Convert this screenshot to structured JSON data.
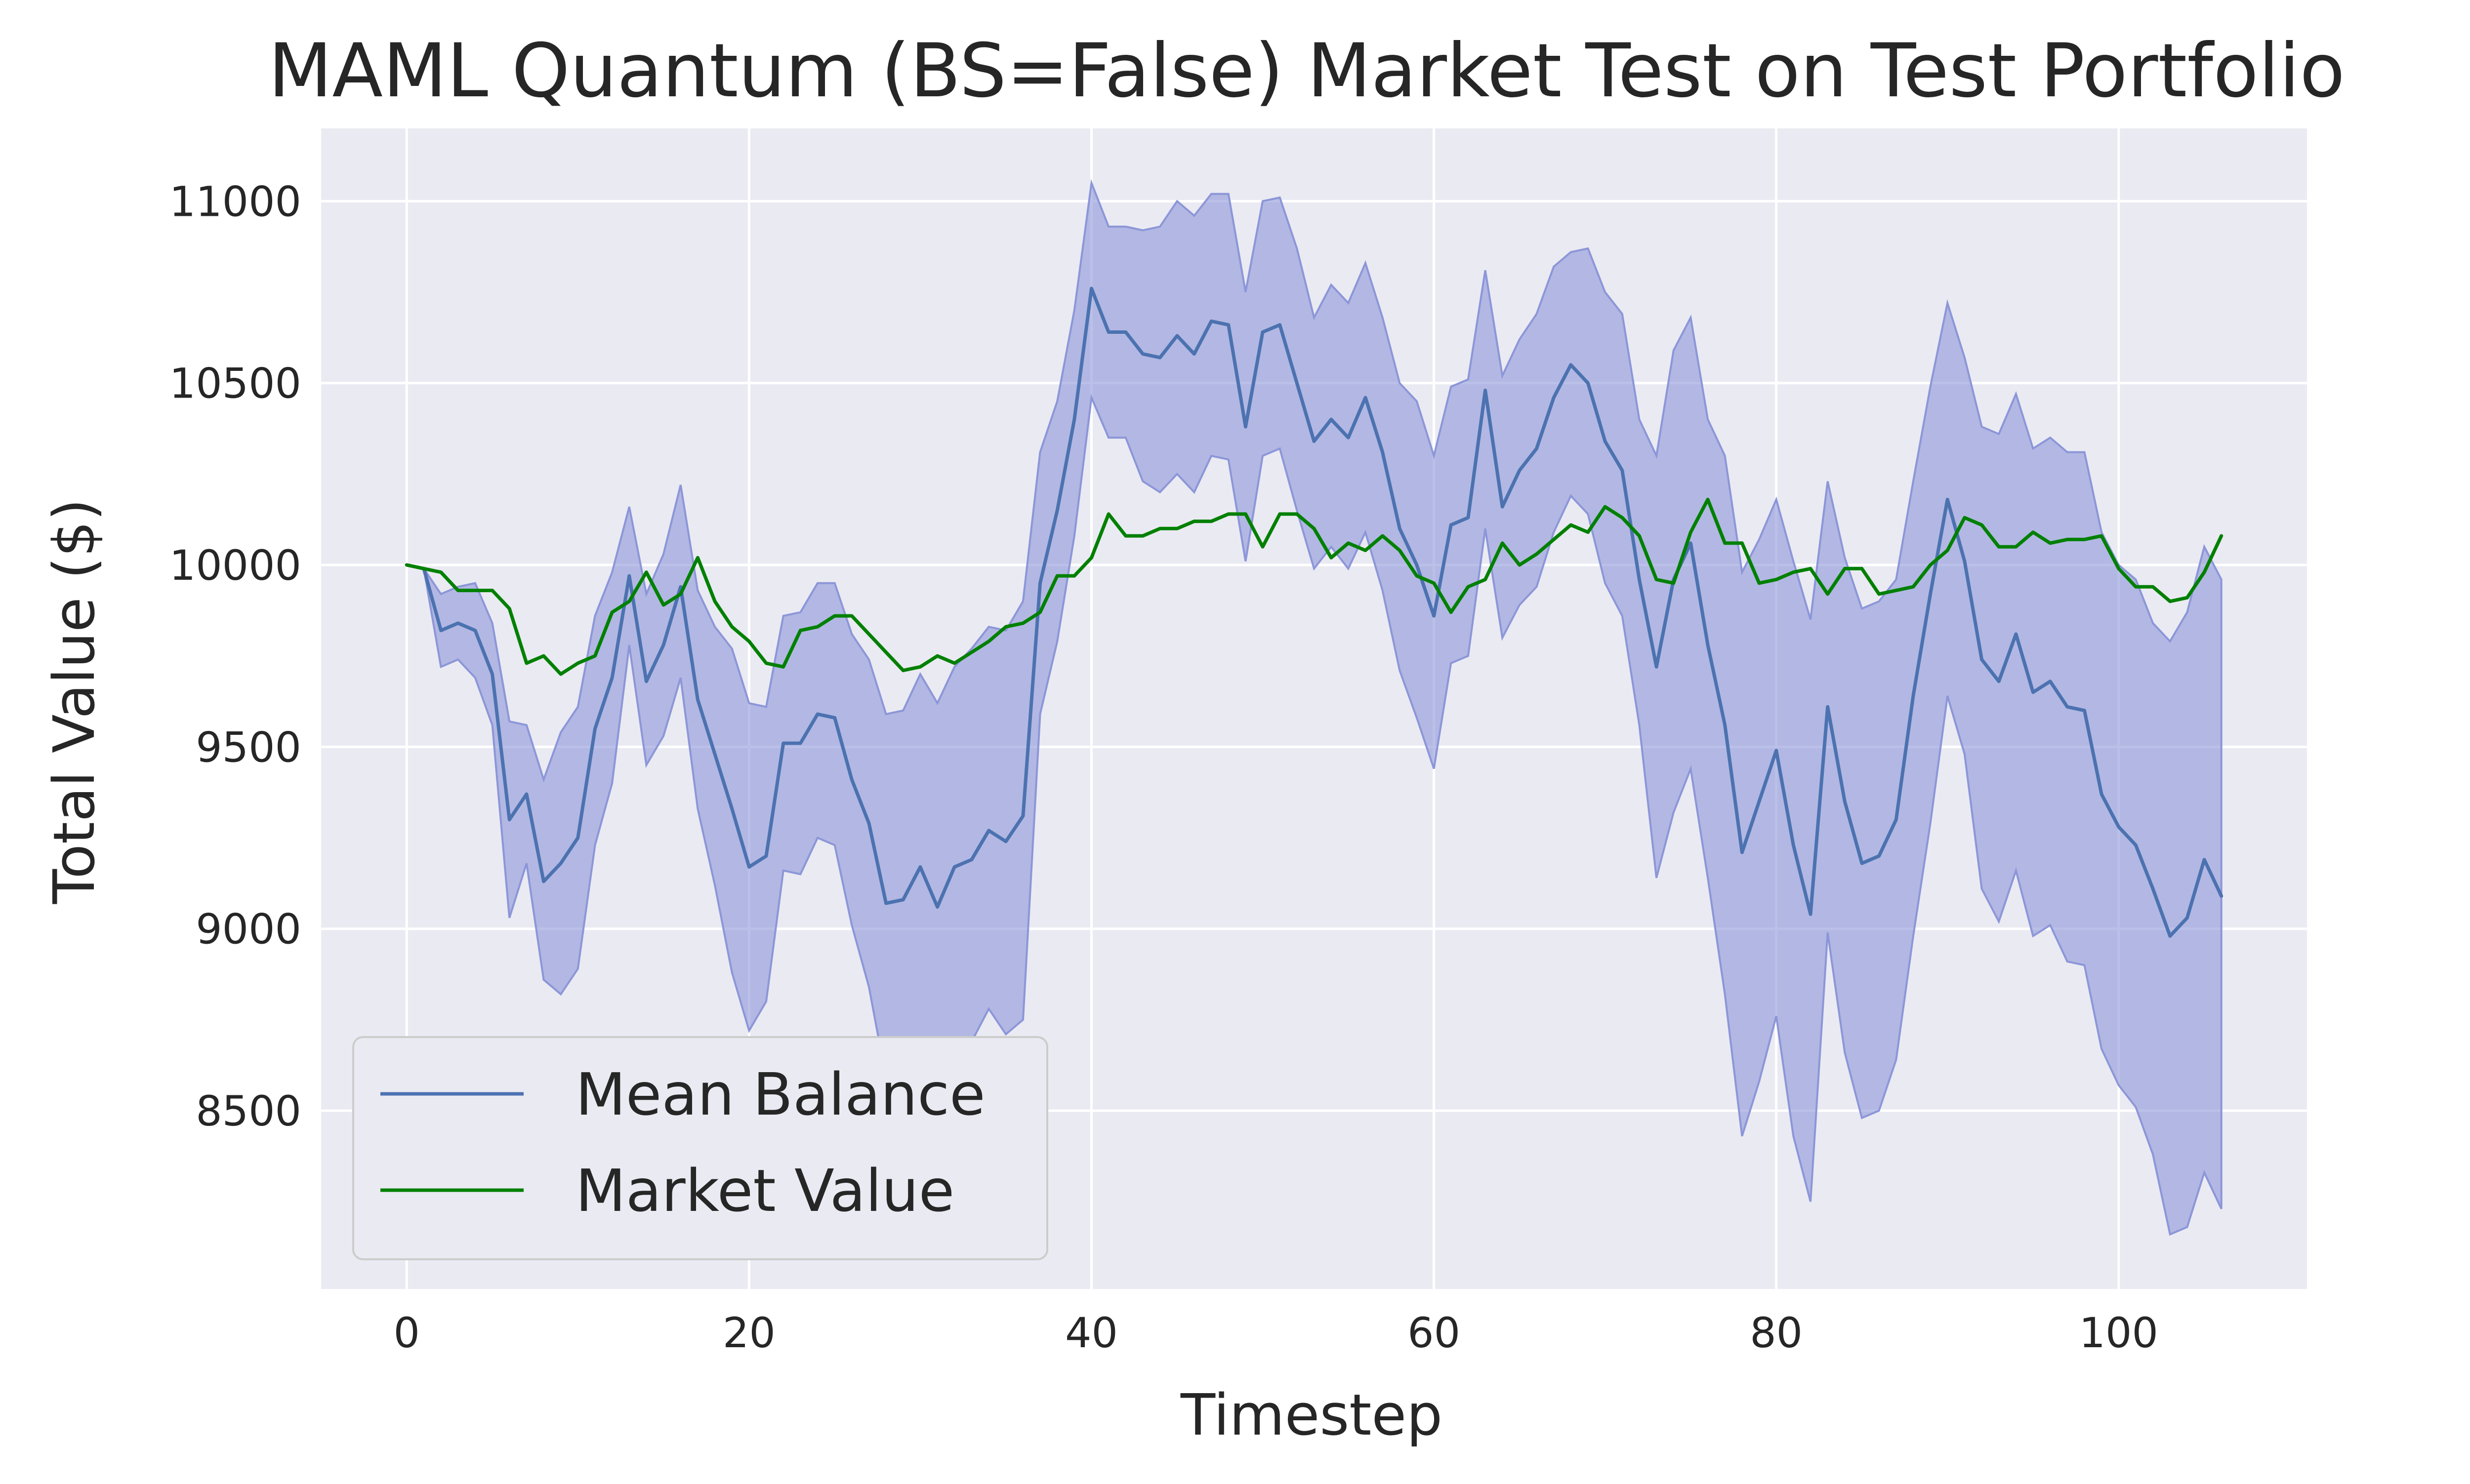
{
  "chart_data": {
    "type": "line",
    "title": "MAML Quantum (BS=False) Market Test on Test Portfolio",
    "xlabel": "Timestep",
    "ylabel": "Total Value ($)",
    "xlim": [
      -5,
      111
    ],
    "ylim": [
      8010,
      11200
    ],
    "xticks": [
      0,
      20,
      40,
      60,
      80,
      100
    ],
    "yticks": [
      8500,
      9000,
      9500,
      10000,
      10500,
      11000
    ],
    "grid": true,
    "legend_position": "lower-left",
    "colors": {
      "background": "#eaeaf2",
      "grid": "#ffffff",
      "band": "#8c96d8",
      "mean_line": "#4c72b0",
      "market_line": "#008000"
    },
    "x": [
      0,
      1,
      2,
      3,
      4,
      5,
      6,
      7,
      8,
      9,
      10,
      11,
      12,
      13,
      14,
      15,
      16,
      17,
      18,
      19,
      20,
      21,
      22,
      23,
      24,
      25,
      26,
      27,
      28,
      29,
      30,
      31,
      32,
      33,
      34,
      35,
      36,
      37,
      38,
      39,
      40,
      41,
      42,
      43,
      44,
      45,
      46,
      47,
      48,
      49,
      50,
      51,
      52,
      53,
      54,
      55,
      56,
      57,
      58,
      59,
      60,
      61,
      62,
      63,
      64,
      65,
      66,
      67,
      68,
      69,
      70,
      71,
      72,
      73,
      74,
      75,
      76,
      77,
      78,
      79,
      80,
      81,
      82,
      83,
      84,
      85,
      86,
      87,
      88,
      89,
      90,
      91,
      92,
      93,
      94,
      95,
      96,
      97,
      98,
      99,
      100,
      101,
      102,
      103,
      104,
      105,
      106
    ],
    "series": [
      {
        "name": "Mean Balance",
        "color": "#4c72b0",
        "values": [
          10000,
          9990,
          9820,
          9840,
          9820,
          9700,
          9300,
          9370,
          9130,
          9180,
          9250,
          9550,
          9690,
          9970,
          9680,
          9780,
          9940,
          9630,
          9480,
          9330,
          9170,
          9200,
          9510,
          9510,
          9590,
          9580,
          9410,
          9290,
          9070,
          9080,
          9170,
          9060,
          9170,
          9190,
          9270,
          9240,
          9310,
          9950,
          10150,
          10400,
          10760,
          10640,
          10640,
          10580,
          10570,
          10630,
          10580,
          10670,
          10660,
          10380,
          10640,
          10660,
          10500,
          10340,
          10400,
          10350,
          10460,
          10310,
          10100,
          10000,
          9860,
          10110,
          10130,
          10480,
          10160,
          10260,
          10320,
          10460,
          10550,
          10500,
          10340,
          10260,
          9960,
          9720,
          9960,
          10060,
          9780,
          9560,
          9210,
          9350,
          9490,
          9230,
          9040,
          9610,
          9350,
          9180,
          9200,
          9300,
          9640,
          9920,
          10180,
          10010,
          9740,
          9680,
          9810,
          9650,
          9680,
          9610,
          9600,
          9370,
          9280,
          9230,
          9110,
          8980,
          9030,
          9190,
          9090
        ]
      },
      {
        "name": "Market Value",
        "color": "#008000",
        "values": [
          10000,
          9990,
          9980,
          9930,
          9930,
          9930,
          9880,
          9730,
          9750,
          9700,
          9730,
          9750,
          9870,
          9900,
          9980,
          9890,
          9920,
          10020,
          9900,
          9830,
          9790,
          9730,
          9720,
          9820,
          9830,
          9860,
          9860,
          9810,
          9760,
          9710,
          9720,
          9750,
          9730,
          9760,
          9790,
          9830,
          9840,
          9870,
          9970,
          9970,
          10020,
          10140,
          10080,
          10080,
          10100,
          10100,
          10120,
          10120,
          10140,
          10140,
          10050,
          10140,
          10140,
          10100,
          10020,
          10060,
          10040,
          10080,
          10040,
          9970,
          9950,
          9870,
          9940,
          9960,
          10060,
          10000,
          10030,
          10070,
          10110,
          10090,
          10160,
          10130,
          10080,
          9960,
          9950,
          10090,
          10180,
          10060,
          10060,
          9950,
          9960,
          9980,
          9990,
          9920,
          9990,
          9990,
          9920,
          9930,
          9940,
          10000,
          10040,
          10130,
          10110,
          10050,
          10050,
          10090,
          10060,
          10070,
          10070,
          10080,
          9990,
          9940,
          9940,
          9900,
          9910,
          9980,
          10080
        ]
      }
    ],
    "band": {
      "lower": [
        10000,
        9990,
        9720,
        9740,
        9690,
        9560,
        9030,
        9180,
        8860,
        8820,
        8890,
        9230,
        9400,
        9780,
        9450,
        9530,
        9690,
        9330,
        9120,
        8880,
        8720,
        8800,
        9160,
        9150,
        9250,
        9230,
        9010,
        8840,
        8590,
        8580,
        8630,
        8570,
        8680,
        8690,
        8780,
        8710,
        8750,
        9590,
        9790,
        10080,
        10460,
        10350,
        10350,
        10230,
        10200,
        10250,
        10200,
        10300,
        10290,
        10010,
        10300,
        10320,
        10150,
        9990,
        10050,
        9990,
        10090,
        9930,
        9710,
        9580,
        9440,
        9730,
        9750,
        10100,
        9800,
        9890,
        9940,
        10090,
        10190,
        10140,
        9950,
        9860,
        9560,
        9140,
        9320,
        9440,
        9140,
        8820,
        8430,
        8580,
        8760,
        8430,
        8250,
        8990,
        8660,
        8480,
        8500,
        8640,
        8980,
        9290,
        9640,
        9480,
        9110,
        9020,
        9160,
        8980,
        9010,
        8910,
        8900,
        8670,
        8570,
        8510,
        8380,
        8160,
        8180,
        8330,
        8230
      ],
      "upper": [
        10000,
        9990,
        9920,
        9940,
        9950,
        9840,
        9570,
        9560,
        9410,
        9540,
        9610,
        9860,
        9980,
        10160,
        9920,
        10030,
        10220,
        9930,
        9830,
        9770,
        9620,
        9610,
        9860,
        9870,
        9950,
        9950,
        9810,
        9740,
        9590,
        9600,
        9700,
        9620,
        9720,
        9770,
        9830,
        9820,
        9900,
        10310,
        10450,
        10700,
        11050,
        10930,
        10930,
        10920,
        10930,
        11000,
        10960,
        11020,
        11020,
        10750,
        11000,
        11010,
        10870,
        10680,
        10770,
        10720,
        10830,
        10680,
        10500,
        10450,
        10300,
        10490,
        10510,
        10810,
        10520,
        10620,
        10690,
        10820,
        10860,
        10870,
        10750,
        10690,
        10400,
        10300,
        10590,
        10680,
        10400,
        10300,
        9980,
        10070,
        10180,
        10010,
        9850,
        10230,
        10020,
        9880,
        9900,
        9960,
        10230,
        10490,
        10720,
        10570,
        10380,
        10360,
        10470,
        10320,
        10350,
        10310,
        10310,
        10090,
        10000,
        9960,
        9840,
        9790,
        9870,
        10050,
        9960
      ]
    },
    "legend": {
      "entries": [
        "Mean Balance",
        "Market Value"
      ]
    }
  }
}
